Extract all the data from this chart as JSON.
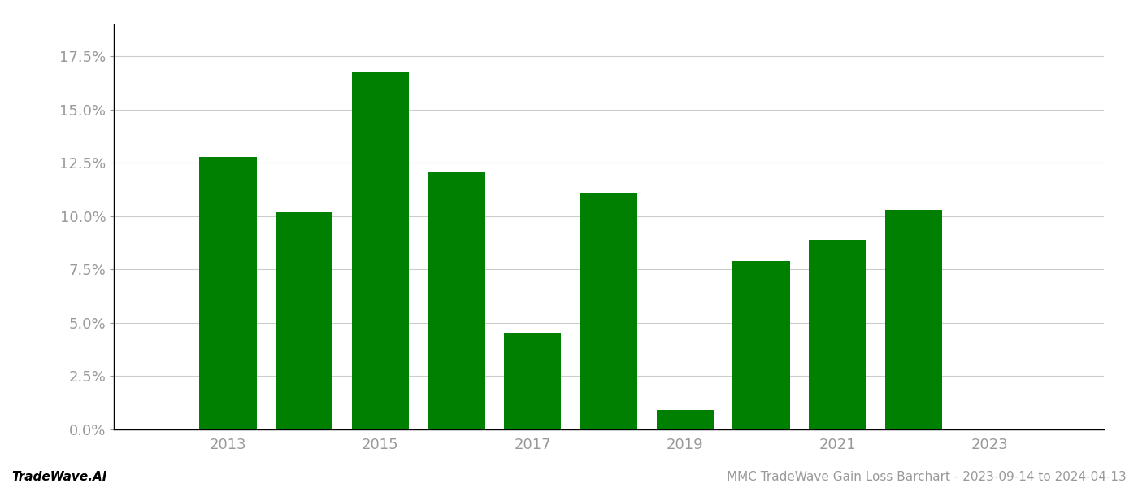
{
  "years": [
    2013,
    2014,
    2015,
    2016,
    2017,
    2018,
    2019,
    2020,
    2021,
    2022,
    2023
  ],
  "values": [
    0.128,
    0.102,
    0.168,
    0.121,
    0.045,
    0.111,
    0.009,
    0.079,
    0.089,
    0.103,
    0.0
  ],
  "bar_color": "#008000",
  "background_color": "#ffffff",
  "ylim": [
    0,
    0.19
  ],
  "yticks": [
    0.0,
    0.025,
    0.05,
    0.075,
    0.1,
    0.125,
    0.15,
    0.175
  ],
  "xlabel": "",
  "ylabel": "",
  "footer_left": "TradeWave.AI",
  "footer_right": "MMC TradeWave Gain Loss Barchart - 2023-09-14 to 2024-04-13",
  "grid_color": "#cccccc",
  "tick_color": "#999999",
  "footer_color_left": "#000000",
  "footer_fontsize": 11,
  "bar_width": 0.75,
  "xlim_left": 2011.5,
  "xlim_right": 2024.5
}
